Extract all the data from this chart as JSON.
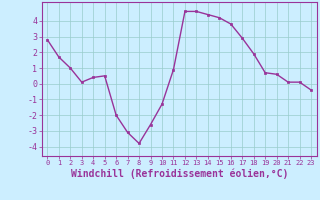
{
  "x": [
    0,
    1,
    2,
    3,
    4,
    5,
    6,
    7,
    8,
    9,
    10,
    11,
    12,
    13,
    14,
    15,
    16,
    17,
    18,
    19,
    20,
    21,
    22,
    23
  ],
  "y": [
    2.8,
    1.7,
    1.0,
    0.1,
    0.4,
    0.5,
    -2.0,
    -3.1,
    -3.8,
    -2.6,
    -1.3,
    0.9,
    4.6,
    4.6,
    4.4,
    4.2,
    3.8,
    2.9,
    1.9,
    0.7,
    0.6,
    0.1,
    0.1,
    -0.4
  ],
  "line_color": "#993399",
  "marker": "s",
  "markersize": 2.0,
  "linewidth": 1.0,
  "xlabel": "Windchill (Refroidissement éolien,°C)",
  "xlabel_fontsize": 7,
  "xlim": [
    -0.5,
    23.5
  ],
  "ylim": [
    -4.6,
    5.2
  ],
  "yticks": [
    -4,
    -3,
    -2,
    -1,
    0,
    1,
    2,
    3,
    4
  ],
  "xticks": [
    0,
    1,
    2,
    3,
    4,
    5,
    6,
    7,
    8,
    9,
    10,
    11,
    12,
    13,
    14,
    15,
    16,
    17,
    18,
    19,
    20,
    21,
    22,
    23
  ],
  "background_color": "#cceeff",
  "grid_color": "#99cccc",
  "tick_color": "#993399",
  "label_color": "#993399",
  "spine_color": "#993399"
}
